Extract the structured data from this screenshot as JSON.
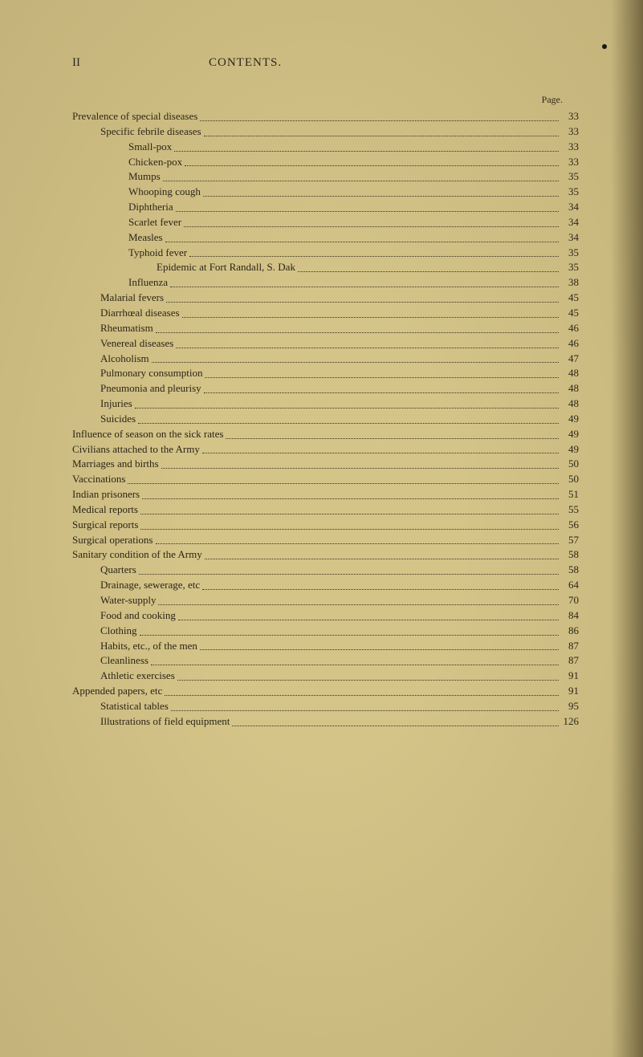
{
  "header": {
    "pageNumber": "II",
    "title": "CONTENTS."
  },
  "pageLabel": "Page.",
  "colors": {
    "background": "#d4c488",
    "text": "#2a2418",
    "dots": "#3a3020"
  },
  "entries": [
    {
      "label": "Prevalence of special diseases",
      "page": "33",
      "indent": 0
    },
    {
      "label": "Specific febrile diseases",
      "page": "33",
      "indent": 1
    },
    {
      "label": "Small-pox",
      "page": "33",
      "indent": 2
    },
    {
      "label": "Chicken-pox",
      "page": "33",
      "indent": 2
    },
    {
      "label": "Mumps",
      "page": "35",
      "indent": 2
    },
    {
      "label": "Whooping cough",
      "page": "35",
      "indent": 2
    },
    {
      "label": "Diphtheria",
      "page": "34",
      "indent": 2
    },
    {
      "label": "Scarlet fever",
      "page": "34",
      "indent": 2
    },
    {
      "label": "Measles",
      "page": "34",
      "indent": 2
    },
    {
      "label": "Typhoid fever",
      "page": "35",
      "indent": 2
    },
    {
      "label": "Epidemic at Fort Randall, S. Dak",
      "page": "35",
      "indent": 3
    },
    {
      "label": "Influenza",
      "page": "38",
      "indent": 2
    },
    {
      "label": "Malarial fevers",
      "page": "45",
      "indent": 1
    },
    {
      "label": "Diarrhœal diseases",
      "page": "45",
      "indent": 1
    },
    {
      "label": "Rheumatism",
      "page": "46",
      "indent": 1
    },
    {
      "label": "Venereal diseases",
      "page": "46",
      "indent": 1
    },
    {
      "label": "Alcoholism",
      "page": "47",
      "indent": 1
    },
    {
      "label": "Pulmonary consumption",
      "page": "48",
      "indent": 1
    },
    {
      "label": "Pneumonia and pleurisy",
      "page": "48",
      "indent": 1
    },
    {
      "label": "Injuries",
      "page": "48",
      "indent": 1
    },
    {
      "label": "Suicides",
      "page": "49",
      "indent": 1
    },
    {
      "label": "Influence of season on the sick rates",
      "page": "49",
      "indent": 0
    },
    {
      "label": "Civilians attached to the Army",
      "page": "49",
      "indent": 0
    },
    {
      "label": "Marriages and births",
      "page": "50",
      "indent": 0
    },
    {
      "label": "Vaccinations",
      "page": "50",
      "indent": 0
    },
    {
      "label": "Indian prisoners",
      "page": "51",
      "indent": 0
    },
    {
      "label": "Medical reports",
      "page": "55",
      "indent": 0
    },
    {
      "label": "Surgical reports",
      "page": "56",
      "indent": 0
    },
    {
      "label": "Surgical operations",
      "page": "57",
      "indent": 0
    },
    {
      "label": "Sanitary condition of the Army",
      "page": "58",
      "indent": 0
    },
    {
      "label": "Quarters",
      "page": "58",
      "indent": 1
    },
    {
      "label": "Drainage, sewerage, etc",
      "page": "64",
      "indent": 1
    },
    {
      "label": "Water-supply",
      "page": "70",
      "indent": 1
    },
    {
      "label": "Food and cooking",
      "page": "84",
      "indent": 1
    },
    {
      "label": "Clothing",
      "page": "86",
      "indent": 1
    },
    {
      "label": "Habits, etc., of the men",
      "page": "87",
      "indent": 1
    },
    {
      "label": "Cleanliness",
      "page": "87",
      "indent": 1
    },
    {
      "label": "Athletic exercises",
      "page": "91",
      "indent": 1
    },
    {
      "label": "Appended papers, etc",
      "page": "91",
      "indent": 0
    },
    {
      "label": "Statistical tables",
      "page": "95",
      "indent": 1
    },
    {
      "label": "Illustrations of field equipment",
      "page": "126",
      "indent": 1
    }
  ]
}
